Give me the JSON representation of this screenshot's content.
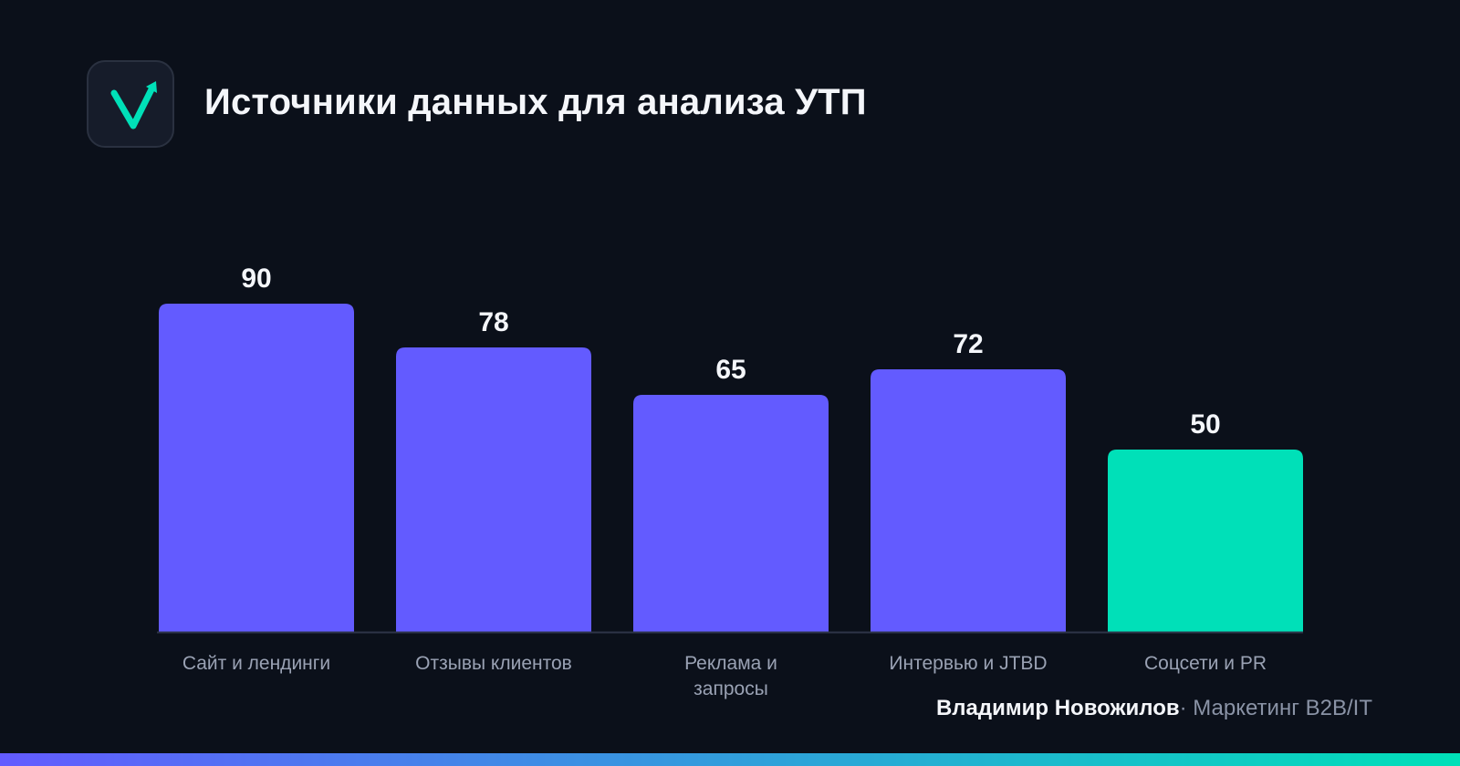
{
  "header": {
    "title": "Источники данных для анализа УТП",
    "logo_icon": "checkmark-arrow-icon"
  },
  "chart_data": {
    "type": "bar",
    "categories": [
      "Сайт и лендинги",
      "Отзывы клиентов",
      "Реклама и запросы",
      "Интервью и JTBD",
      "Соцсети и PR"
    ],
    "category_lines": [
      [
        "Сайт и лендинги"
      ],
      [
        "Отзывы клиентов"
      ],
      [
        "Реклама и",
        "запросы"
      ],
      [
        "Интервью и JTBD"
      ],
      [
        "Соцсети и PR"
      ]
    ],
    "values": [
      90,
      78,
      65,
      72,
      50
    ],
    "title": "Источники данных для анализа УТП",
    "xlabel": "",
    "ylabel": "",
    "ylim": [
      0,
      90
    ],
    "grid": false,
    "data_labels": true,
    "highlight_index": 4
  },
  "footer": {
    "author": "Владимир Новожилов",
    "separator": "·",
    "role": " Маркетинг B2B/IT"
  },
  "colors": {
    "background": "#0b101a",
    "bar": "#635bff",
    "bar_highlight": "#00e0b8",
    "accent_gradient_start": "#635bff",
    "accent_gradient_end": "#00e0b8",
    "value_label": "#f4f6fa",
    "category_label": "#9aa2b4",
    "axis": "#2e3448"
  }
}
